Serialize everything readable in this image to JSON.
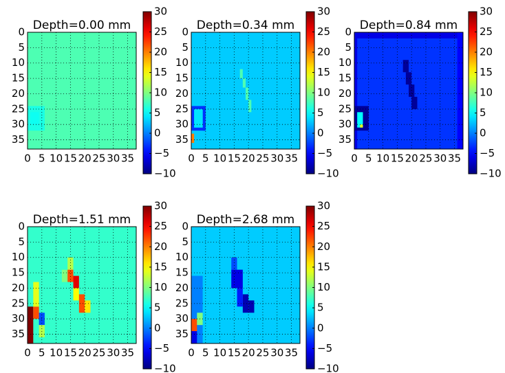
{
  "chart_data": [
    {
      "type": "heatmap",
      "title": "Depth=0.00 mm",
      "colormap": "jet",
      "grid": true,
      "xlim": [
        0,
        38
      ],
      "ylim": [
        38,
        0
      ],
      "xticks": [
        0,
        5,
        10,
        15,
        20,
        25,
        30,
        35
      ],
      "yticks": [
        0,
        5,
        10,
        15,
        20,
        25,
        30,
        35
      ],
      "clim": [
        -10,
        30
      ],
      "cticks": [
        {
          "value": -10,
          "label": "−10"
        },
        {
          "value": -5,
          "label": "−5"
        },
        0,
        5,
        10,
        15,
        20,
        25,
        30
      ],
      "fill_value": 8,
      "cells": [
        [
          0,
          24,
          6,
          8,
          6
        ],
        [
          1,
          26,
          3,
          4,
          5.5
        ]
      ]
    },
    {
      "type": "heatmap",
      "title": "Depth=0.34 mm",
      "colormap": "jet",
      "grid": true,
      "xlim": [
        0,
        38
      ],
      "ylim": [
        38,
        0
      ],
      "xticks": [
        0,
        5,
        10,
        15,
        20,
        25,
        30,
        35
      ],
      "yticks": [
        0,
        5,
        10,
        15,
        20,
        25,
        30,
        35
      ],
      "clim": [
        -10,
        30
      ],
      "cticks": [
        {
          "value": -10,
          "label": "−10"
        },
        {
          "value": -5,
          "label": "−5"
        },
        0,
        5,
        10,
        15,
        20,
        25,
        30
      ],
      "fill_value": 3,
      "cells": [
        [
          17,
          12,
          1,
          3,
          8
        ],
        [
          18,
          15,
          1,
          3,
          8
        ],
        [
          19,
          18,
          1,
          4,
          8
        ],
        [
          20,
          22,
          1,
          4,
          8
        ],
        [
          0,
          24,
          5,
          1,
          -3
        ],
        [
          0,
          31,
          5,
          1,
          -3
        ],
        [
          4,
          24,
          1,
          8,
          -3
        ],
        [
          0,
          25,
          1,
          6,
          -3
        ],
        [
          1,
          25,
          3,
          6,
          4
        ],
        [
          0,
          33,
          1,
          3,
          20
        ]
      ]
    },
    {
      "type": "heatmap",
      "title": "Depth=0.84 mm",
      "colormap": "jet",
      "grid": true,
      "xlim": [
        0,
        38
      ],
      "ylim": [
        38,
        0
      ],
      "xticks": [
        0,
        5,
        10,
        15,
        20,
        25,
        30,
        35
      ],
      "yticks": [
        0,
        5,
        10,
        15,
        20,
        25,
        30,
        35
      ],
      "clim": [
        -10,
        30
      ],
      "cticks": [
        {
          "value": -10,
          "label": "−10"
        },
        {
          "value": -5,
          "label": "−5"
        },
        0,
        5,
        10,
        15,
        20,
        25,
        30
      ],
      "fill_value": -3,
      "cells": [
        [
          0,
          0,
          38,
          2,
          -6
        ],
        [
          0,
          0,
          1,
          38,
          -6
        ],
        [
          36,
          0,
          2,
          38,
          -5
        ],
        [
          17,
          9,
          2,
          4,
          -9
        ],
        [
          18,
          13,
          2,
          4,
          -9
        ],
        [
          19,
          17,
          2,
          4,
          -9
        ],
        [
          20,
          21,
          2,
          4,
          -9
        ],
        [
          0,
          24,
          5,
          8,
          -9
        ],
        [
          1,
          26,
          2,
          5,
          5
        ],
        [
          2,
          30,
          1,
          1,
          14
        ]
      ]
    },
    {
      "type": "heatmap",
      "title": "Depth=1.51 mm",
      "colormap": "jet",
      "grid": true,
      "xlim": [
        0,
        38
      ],
      "ylim": [
        38,
        0
      ],
      "xticks": [
        0,
        5,
        10,
        15,
        20,
        25,
        30,
        35
      ],
      "yticks": [
        0,
        5,
        10,
        15,
        20,
        25,
        30,
        35
      ],
      "clim": [
        -10,
        30
      ],
      "cticks": [
        {
          "value": -10,
          "label": "−10"
        },
        {
          "value": -5,
          "label": "−5"
        },
        0,
        5,
        10,
        15,
        20,
        25,
        30
      ],
      "fill_value": 7,
      "cells": [
        [
          0,
          26,
          2,
          12,
          30
        ],
        [
          2,
          26,
          2,
          4,
          22
        ],
        [
          2,
          18,
          2,
          8,
          14
        ],
        [
          4,
          28,
          2,
          4,
          -2
        ],
        [
          4,
          32,
          2,
          4,
          12
        ],
        [
          12,
          14,
          2,
          4,
          10
        ],
        [
          14,
          10,
          2,
          4,
          12
        ],
        [
          14,
          14,
          2,
          4,
          22
        ],
        [
          16,
          16,
          2,
          4,
          26
        ],
        [
          16,
          20,
          2,
          4,
          15
        ],
        [
          18,
          22,
          2,
          6,
          22
        ],
        [
          20,
          24,
          2,
          4,
          16
        ]
      ]
    },
    {
      "type": "heatmap",
      "title": "Depth=2.68 mm",
      "colormap": "jet",
      "grid": true,
      "xlim": [
        0,
        38
      ],
      "ylim": [
        38,
        0
      ],
      "xticks": [
        0,
        5,
        10,
        15,
        20,
        25,
        30,
        35
      ],
      "yticks": [
        0,
        5,
        10,
        15,
        20,
        25,
        30,
        35
      ],
      "clim": [
        -10,
        30
      ],
      "cticks": [
        {
          "value": -10,
          "label": "−10"
        },
        {
          "value": -5,
          "label": "−5"
        },
        0,
        5,
        10,
        15,
        20,
        25,
        30
      ],
      "fill_value": 3,
      "cells": [
        [
          0,
          16,
          4,
          22,
          0
        ],
        [
          14,
          10,
          2,
          4,
          -2
        ],
        [
          14,
          14,
          4,
          6,
          -6
        ],
        [
          16,
          20,
          2,
          6,
          -4
        ],
        [
          18,
          22,
          2,
          6,
          -8
        ],
        [
          20,
          24,
          2,
          4,
          -8
        ],
        [
          0,
          30,
          2,
          4,
          22
        ],
        [
          0,
          34,
          2,
          4,
          -6
        ],
        [
          2,
          28,
          2,
          4,
          10
        ]
      ]
    }
  ]
}
